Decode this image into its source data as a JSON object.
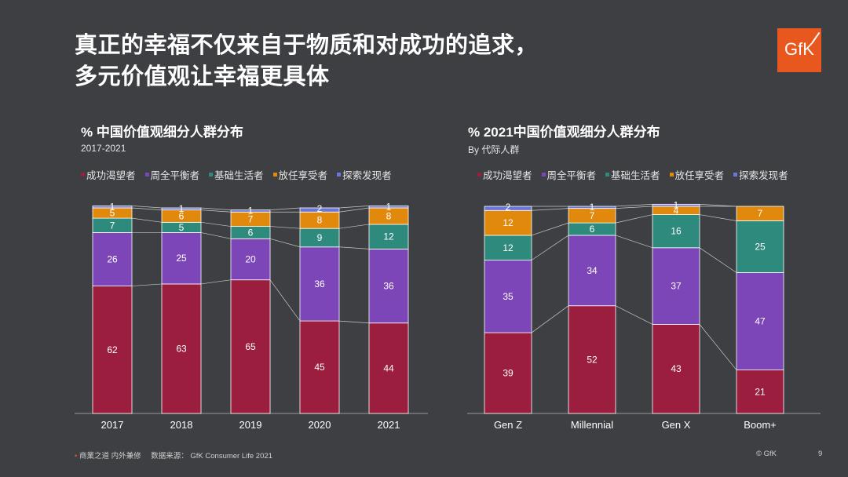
{
  "title_line1": "真正的幸福不仅来自于物质和对成功的追求，",
  "title_line2": "多元价值观让幸福更具体",
  "logo_text": "GfK",
  "footer_left": "商業之道 内外兼修",
  "footer_source": "数据来源：  GfK Consumer Life 2021",
  "footer_copyright": "© GfK",
  "page_number": "9",
  "colors": {
    "成功渴望者": "#9b1e3e",
    "周全平衡者": "#7c46b8",
    "基础生活者": "#2e8a7c",
    "放任享受者": "#e0890d",
    "探索发现者": "#6a77d8"
  },
  "chart_data": [
    {
      "type": "bar",
      "stacked": true,
      "title": "% 中国价值观细分人群分布",
      "subtitle": "2017-2021",
      "categories": [
        "2017",
        "2018",
        "2019",
        "2020",
        "2021"
      ],
      "series": [
        {
          "name": "成功渴望者",
          "values": [
            62,
            63,
            65,
            45,
            44
          ]
        },
        {
          "name": "周全平衡者",
          "values": [
            26,
            25,
            20,
            36,
            36
          ]
        },
        {
          "name": "基础生活者",
          "values": [
            7,
            5,
            6,
            9,
            12
          ]
        },
        {
          "name": "放任享受者",
          "values": [
            5,
            6,
            7,
            8,
            8
          ]
        },
        {
          "name": "探索发现者",
          "values": [
            1,
            1,
            1,
            2,
            1
          ]
        }
      ],
      "ylim": [
        0,
        100
      ],
      "legend_position": "top"
    },
    {
      "type": "bar",
      "stacked": true,
      "title": "% 2021中国价值观细分人群分布",
      "subtitle": "By 代际人群",
      "categories": [
        "Gen Z",
        "Millennial",
        "Gen X",
        "Boom+"
      ],
      "series": [
        {
          "name": "成功渴望者",
          "values": [
            39,
            52,
            43,
            21
          ]
        },
        {
          "name": "周全平衡者",
          "values": [
            35,
            34,
            37,
            47
          ]
        },
        {
          "name": "基础生活者",
          "values": [
            12,
            6,
            16,
            25
          ]
        },
        {
          "name": "放任享受者",
          "values": [
            12,
            7,
            4,
            7
          ]
        },
        {
          "name": "探索发现者",
          "values": [
            2,
            1,
            1,
            null
          ]
        }
      ],
      "ylim": [
        0,
        100
      ],
      "legend_position": "top"
    }
  ]
}
